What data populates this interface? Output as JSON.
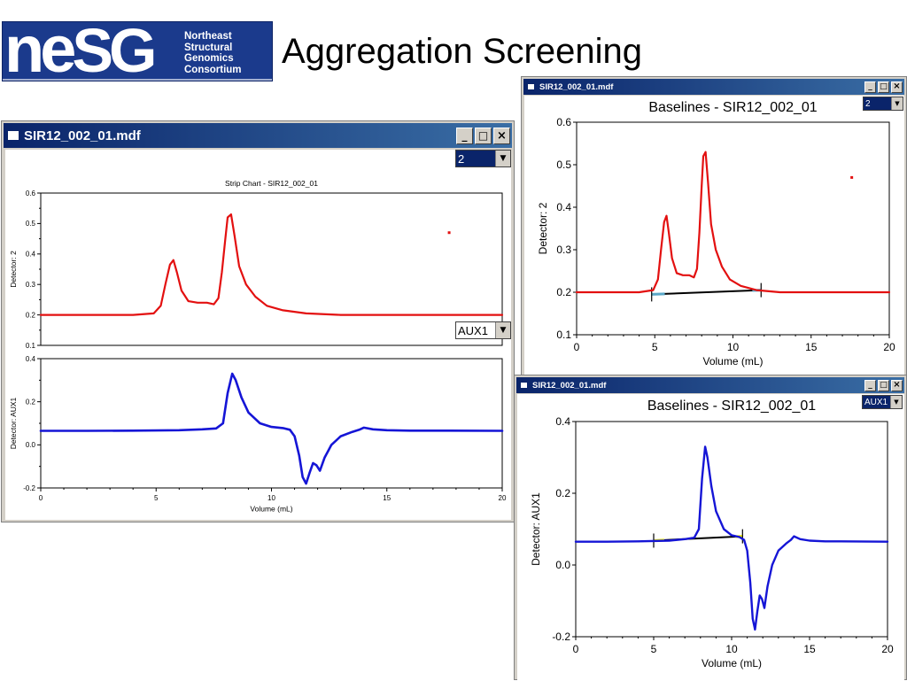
{
  "page": {
    "title": "Aggregation Screening"
  },
  "logo": {
    "letters": "neSG",
    "lines": [
      "Northeast",
      "Structural",
      "Genomics",
      "Consortium"
    ]
  },
  "colors": {
    "detector2": "#e31010",
    "aux1": "#1515d6",
    "baseline": "#000000",
    "baseline_edge2": "#5aa8c8",
    "baseline_edge_aux": "#f0f000",
    "titlebar": "#0a246a"
  },
  "windows": {
    "left": {
      "title": "SIR12_002_01.mdf",
      "chart_title": "Strip Chart - SIR12_002_01",
      "top_select": "2",
      "bottom_select": "AUX1"
    },
    "top_right": {
      "title": "SIR12_002_01.mdf",
      "chart_title": "Baselines - SIR12_002_01",
      "select": "2"
    },
    "bottom_right": {
      "title": "SIR12_002_01.mdf",
      "chart_title": "Baselines - SIR12_002_01",
      "select": "AUX1"
    }
  },
  "chart_data": [
    {
      "type": "line",
      "title": "Strip Chart - SIR12_002_01",
      "xlabel": "",
      "ylabel": "Detector: 2",
      "xlim": [
        0,
        20
      ],
      "ylim": [
        0.1,
        0.6
      ],
      "xticks": [
        "0",
        "5",
        "10",
        "15",
        "20"
      ],
      "yticks": [
        "0.1",
        "0.2",
        "0.3",
        "0.4",
        "0.5",
        "0.6"
      ],
      "grid": false,
      "series": [
        {
          "color": "#e31010",
          "x": [
            0,
            1,
            2,
            3,
            4,
            4.9,
            5.2,
            5.4,
            5.6,
            5.75,
            5.9,
            6.1,
            6.4,
            6.8,
            7.2,
            7.5,
            7.7,
            7.85,
            8.0,
            8.1,
            8.25,
            8.4,
            8.6,
            8.9,
            9.3,
            9.8,
            10.5,
            11.5,
            13,
            15,
            17,
            20
          ],
          "y": [
            0.2,
            0.2,
            0.2,
            0.2,
            0.2,
            0.205,
            0.23,
            0.3,
            0.365,
            0.38,
            0.34,
            0.28,
            0.245,
            0.24,
            0.24,
            0.235,
            0.255,
            0.34,
            0.45,
            0.52,
            0.53,
            0.46,
            0.36,
            0.3,
            0.26,
            0.23,
            0.215,
            0.205,
            0.2,
            0.2,
            0.2,
            0.2
          ]
        }
      ],
      "outliers": [
        {
          "x": 17.7,
          "y": 0.47
        }
      ]
    },
    {
      "type": "line",
      "title": "",
      "xlabel": "Volume (mL)",
      "ylabel": "Detector: AUX1",
      "xlim": [
        0,
        20
      ],
      "ylim": [
        -0.2,
        0.4
      ],
      "xticks": [
        "0",
        "5",
        "10",
        "15",
        "20"
      ],
      "yticks": [
        "-0.2",
        "0.0",
        "0.2",
        "0.4"
      ],
      "grid": false,
      "series": [
        {
          "color": "#1515d6",
          "x": [
            0,
            2,
            4,
            6,
            7,
            7.6,
            7.9,
            8.1,
            8.3,
            8.45,
            8.7,
            9.0,
            9.5,
            10.0,
            10.5,
            10.8,
            11.0,
            11.2,
            11.35,
            11.5,
            11.65,
            11.8,
            11.95,
            12.1,
            12.3,
            12.6,
            13.0,
            13.5,
            13.8,
            14.0,
            14.4,
            15,
            16,
            17,
            20
          ],
          "y": [
            0.065,
            0.065,
            0.066,
            0.068,
            0.072,
            0.076,
            0.1,
            0.24,
            0.33,
            0.3,
            0.22,
            0.15,
            0.1,
            0.083,
            0.078,
            0.07,
            0.04,
            -0.05,
            -0.15,
            -0.18,
            -0.13,
            -0.085,
            -0.095,
            -0.12,
            -0.06,
            0.0,
            0.04,
            0.06,
            0.07,
            0.08,
            0.072,
            0.068,
            0.066,
            0.066,
            0.065
          ]
        }
      ]
    },
    {
      "type": "line",
      "title": "Baselines - SIR12_002_01",
      "xlabel": "Volume (mL)",
      "ylabel": "Detector: 2",
      "xlim": [
        0,
        20
      ],
      "ylim": [
        0.1,
        0.6
      ],
      "xticks": [
        "0",
        "5",
        "10",
        "15",
        "20"
      ],
      "yticks": [
        "0.1",
        "0.2",
        "0.3",
        "0.4",
        "0.5",
        "0.6"
      ],
      "grid": false,
      "series": [
        {
          "color": "#e31010",
          "x": [
            0,
            1,
            2,
            3,
            4,
            4.9,
            5.2,
            5.4,
            5.6,
            5.75,
            5.9,
            6.1,
            6.4,
            6.8,
            7.2,
            7.5,
            7.7,
            7.85,
            8.0,
            8.1,
            8.25,
            8.4,
            8.6,
            8.9,
            9.3,
            9.8,
            10.5,
            11.5,
            13,
            15,
            17,
            20
          ],
          "y": [
            0.2,
            0.2,
            0.2,
            0.2,
            0.2,
            0.205,
            0.23,
            0.3,
            0.365,
            0.38,
            0.34,
            0.28,
            0.245,
            0.24,
            0.24,
            0.235,
            0.255,
            0.34,
            0.45,
            0.52,
            0.53,
            0.46,
            0.36,
            0.3,
            0.26,
            0.23,
            0.215,
            0.205,
            0.2,
            0.2,
            0.2,
            0.2
          ]
        }
      ],
      "outliers": [
        {
          "x": 17.6,
          "y": 0.47
        }
      ],
      "baseline": {
        "x": [
          4.8,
          11.8
        ],
        "y": [
          0.195,
          0.205
        ]
      }
    },
    {
      "type": "line",
      "title": "Baselines - SIR12_002_01",
      "xlabel": "Volume (mL)",
      "ylabel": "Detector: AUX1",
      "xlim": [
        0,
        20
      ],
      "ylim": [
        -0.2,
        0.4
      ],
      "xticks": [
        "0",
        "5",
        "10",
        "15",
        "20"
      ],
      "yticks": [
        "-0.2",
        "0.0",
        "0.2",
        "0.4"
      ],
      "grid": false,
      "series": [
        {
          "color": "#1515d6",
          "x": [
            0,
            2,
            4,
            6,
            7,
            7.6,
            7.9,
            8.1,
            8.3,
            8.45,
            8.7,
            9.0,
            9.5,
            10.0,
            10.5,
            10.8,
            11.0,
            11.2,
            11.35,
            11.5,
            11.65,
            11.8,
            11.95,
            12.1,
            12.3,
            12.6,
            13.0,
            13.5,
            13.8,
            14.0,
            14.4,
            15,
            16,
            17,
            20
          ],
          "y": [
            0.065,
            0.065,
            0.066,
            0.068,
            0.072,
            0.076,
            0.1,
            0.24,
            0.33,
            0.3,
            0.22,
            0.15,
            0.1,
            0.083,
            0.078,
            0.07,
            0.04,
            -0.05,
            -0.15,
            -0.18,
            -0.13,
            -0.085,
            -0.095,
            -0.12,
            -0.06,
            0.0,
            0.04,
            0.06,
            0.07,
            0.08,
            0.072,
            0.068,
            0.066,
            0.066,
            0.065
          ]
        }
      ],
      "baseline": {
        "x": [
          5.0,
          10.7
        ],
        "y": [
          0.068,
          0.08
        ]
      }
    }
  ]
}
